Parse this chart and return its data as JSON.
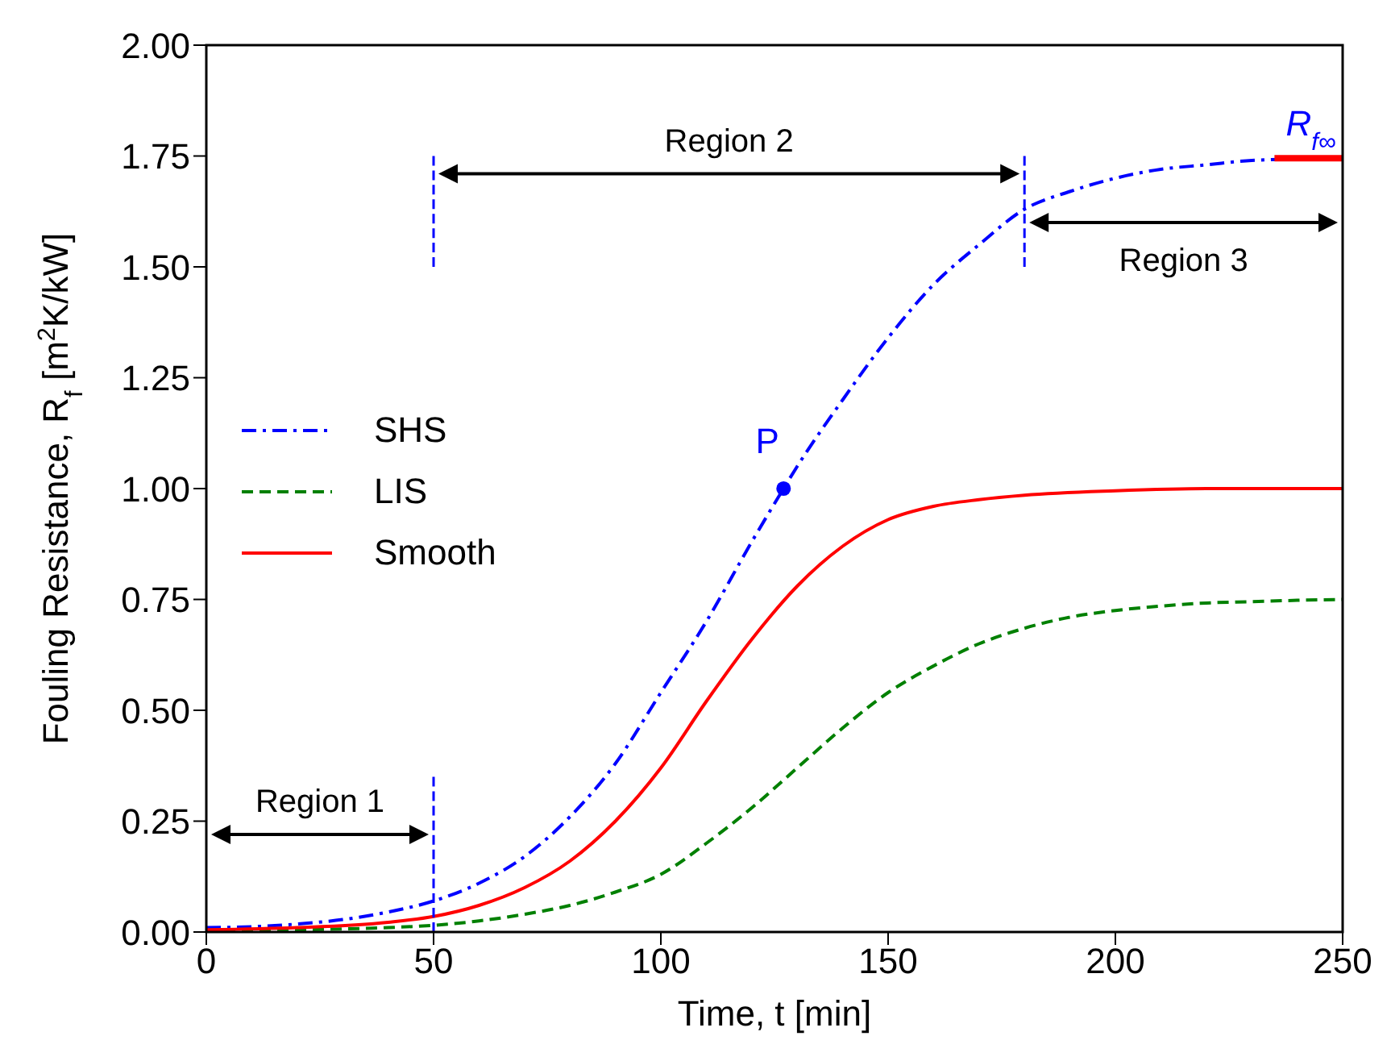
{
  "chart_data": {
    "type": "line",
    "xlabel": "Time, t [min]",
    "ylabel": "Fouling Resistance, R$_{f}$ [m$^{2}$K/kW]",
    "xlim": [
      0,
      250
    ],
    "xticks": [
      0,
      50,
      100,
      150,
      200,
      250
    ],
    "ylim": [
      0,
      2
    ],
    "yticks": [
      {
        "value": 0,
        "label": "0.00"
      },
      {
        "value": 0.25,
        "label": "0.25"
      },
      {
        "value": 0.5,
        "label": "0.50"
      },
      {
        "value": 0.75,
        "label": "0.75"
      },
      {
        "value": 1,
        "label": "1.00"
      },
      {
        "value": 1.25,
        "label": "1.25"
      },
      {
        "value": 1.5,
        "label": "1.50"
      },
      {
        "value": 1.75,
        "label": "1.75"
      },
      {
        "value": 2,
        "label": "2.00"
      }
    ],
    "legend": "center left",
    "grid": false,
    "series": [
      {
        "name": "SHS",
        "color": "#0000ff",
        "line_style": "dashdot",
        "x": [
          0,
          10,
          20,
          30,
          40,
          50,
          60,
          70,
          80,
          90,
          100,
          110,
          120,
          127,
          130,
          140,
          150,
          160,
          170,
          180,
          190,
          200,
          210,
          220,
          230,
          240,
          250
        ],
        "values": [
          0.01,
          0.012,
          0.018,
          0.028,
          0.045,
          0.07,
          0.11,
          0.17,
          0.26,
          0.38,
          0.54,
          0.7,
          0.88,
          1.0,
          1.05,
          1.2,
          1.34,
          1.46,
          1.55,
          1.63,
          1.67,
          1.7,
          1.72,
          1.73,
          1.74,
          null,
          1.745
        ]
      },
      {
        "name": "LIS",
        "color": "#008000",
        "line_style": "dashed",
        "x": [
          0,
          20,
          40,
          50,
          60,
          70,
          80,
          90,
          100,
          110,
          120,
          130,
          140,
          150,
          160,
          170,
          180,
          190,
          200,
          210,
          220,
          230,
          240,
          250
        ],
        "values": [
          0.002,
          0.005,
          0.01,
          0.015,
          0.025,
          0.04,
          0.06,
          0.09,
          0.13,
          0.2,
          0.28,
          0.37,
          0.46,
          0.54,
          0.6,
          0.65,
          0.685,
          0.71,
          0.725,
          0.735,
          0.742,
          0.745,
          0.748,
          0.75
        ]
      },
      {
        "name": "Smooth",
        "color": "#ff0000",
        "line_style": "solid",
        "x": [
          0,
          20,
          40,
          50,
          60,
          70,
          80,
          90,
          100,
          110,
          120,
          130,
          140,
          150,
          160,
          170,
          180,
          200,
          220,
          250
        ],
        "values": [
          0.005,
          0.01,
          0.022,
          0.035,
          0.06,
          0.1,
          0.16,
          0.25,
          0.37,
          0.52,
          0.66,
          0.78,
          0.87,
          0.93,
          0.96,
          0.975,
          0.985,
          0.995,
          1.0,
          1.0
        ]
      },
      {
        "type": "line",
        "color": "#ff0000",
        "line_style": "solid",
        "x": [
          235,
          250
        ],
        "values": [
          1.745,
          1.745
        ]
      },
      {
        "type": "line",
        "color": "#0000ff",
        "line_style": "dashed",
        "x": [
          50,
          50
        ],
        "values": [
          0,
          0.35
        ]
      },
      {
        "type": "line",
        "color": "#0000ff",
        "line_style": "dashed",
        "x": [
          50,
          50
        ],
        "values": [
          1.5,
          1.75
        ]
      },
      {
        "type": "line",
        "color": "#0000ff",
        "line_style": "dashed",
        "x": [
          180,
          180
        ],
        "values": [
          1.5,
          1.75
        ]
      },
      {
        "type": "scatter",
        "color": "#0000ff",
        "marker": "circle",
        "x": [
          127
        ],
        "values": [
          1.0
        ]
      }
    ],
    "annotations": [
      "Region 1",
      "Region 2",
      "Region 3",
      {
        "text": "P",
        "x": 127,
        "y": 1.0
      },
      {
        "text": "R$_{f∞}$",
        "x": 243,
        "y": 1.745
      }
    ]
  }
}
